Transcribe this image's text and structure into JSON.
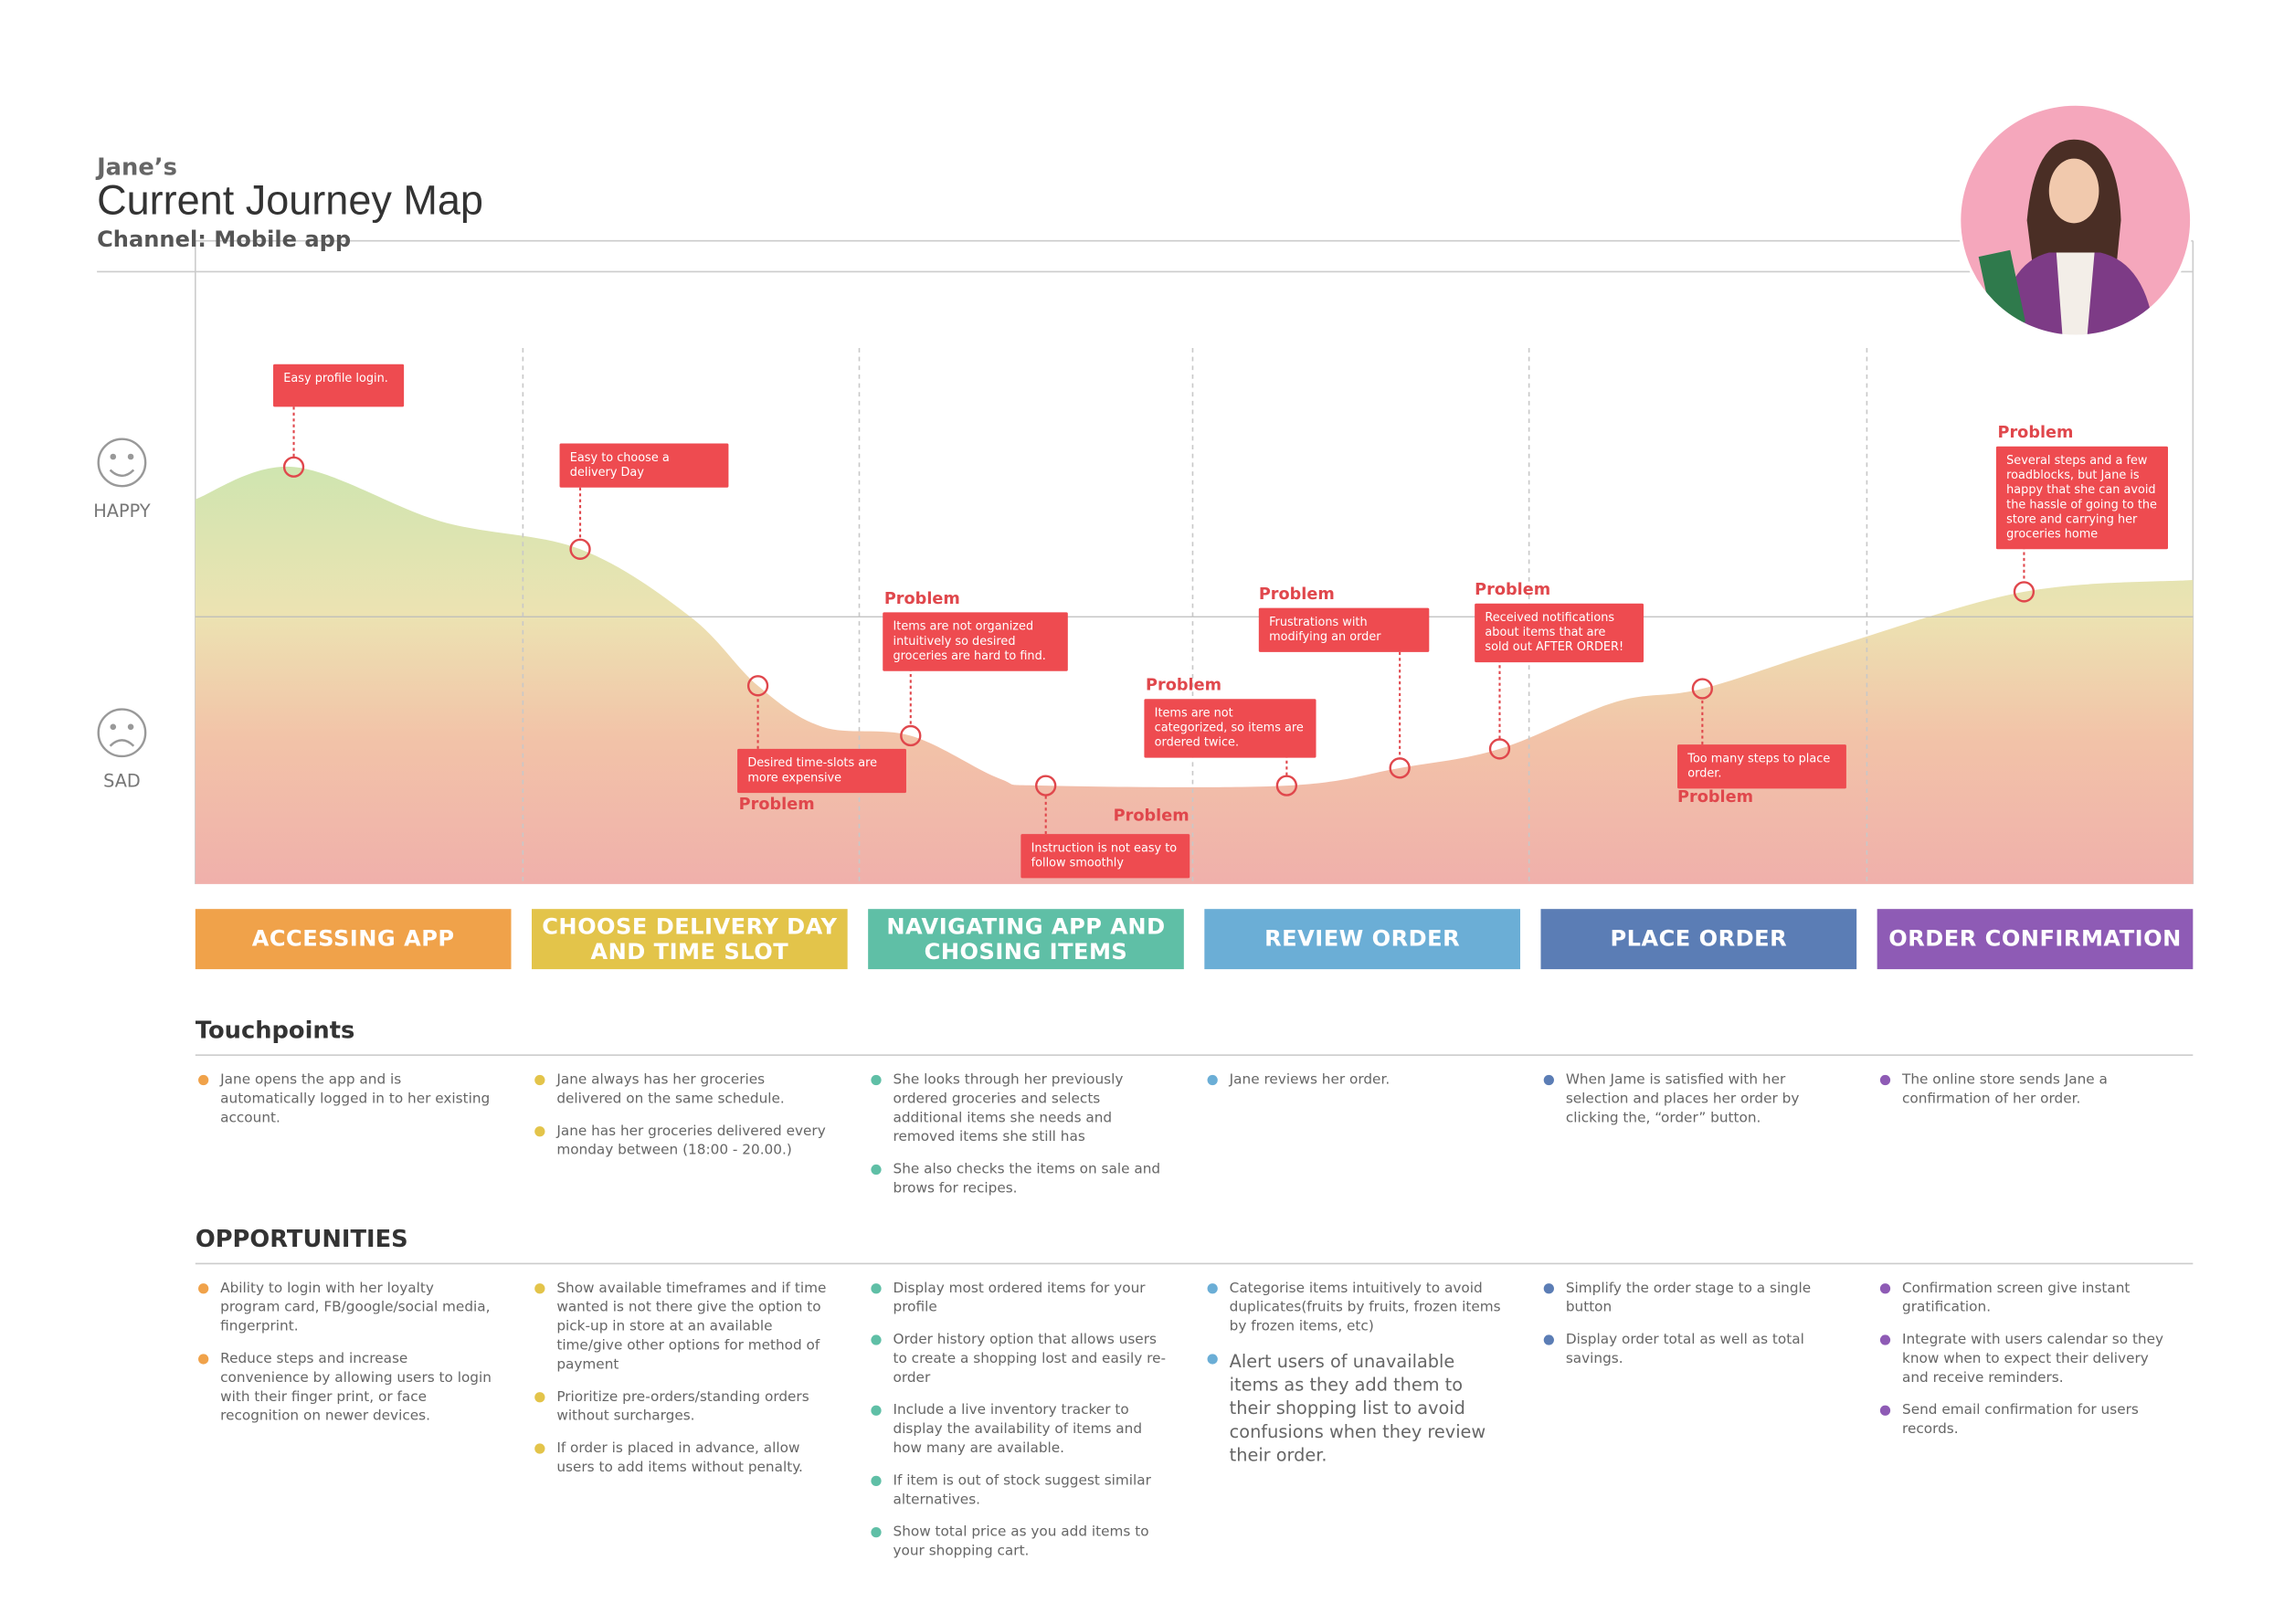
{
  "header": {
    "name": "Jane’s",
    "title": "Current Journey Map",
    "channel": "Channel: Mobile app"
  },
  "mood": {
    "happy": "HAPPY",
    "sad": "SAD"
  },
  "callouts": [
    {
      "text": "Easy profile login."
    },
    {
      "text": "Easy to choose a delivery Day"
    },
    {
      "tag": "Problem",
      "text": "Desired time-slots are more expensive"
    },
    {
      "tag": "Problem",
      "text": "Items are not organized intuitively so desired groceries are hard to find."
    },
    {
      "tag": "Problem",
      "text": "Instruction is not easy to follow smoothly"
    },
    {
      "tag": "Problem",
      "text": "Items are not categorized, so items are ordered twice."
    },
    {
      "tag": "Problem",
      "text": "Frustrations with modifying an order"
    },
    {
      "tag": "Problem",
      "text": "Received notifications about items that are sold out AFTER ORDER!"
    },
    {
      "tag": "Problem",
      "text": "Too many steps to place order."
    },
    {
      "tag": "Problem",
      "text": "Several steps and a few roadblocks, but Jane is happy that she can avoid the hassle of going to the store and carrying her groceries home"
    }
  ],
  "sections": {
    "touchpoints": "Touchpoints",
    "opportunities": "OPPORTUNITIES"
  },
  "stages": [
    {
      "name": "ACCESSING APP",
      "color": "#f0a24a",
      "touchpoints": [
        "Jane opens the app and is automatically logged in to her existing account."
      ],
      "opportunities": [
        "Ability to login with her loyalty program card, FB/google/social media, fingerprint.",
        "Reduce steps and increase convenience by allowing users to login with their finger print, or face recognition on newer devices."
      ]
    },
    {
      "name": "CHOOSE DELIVERY DAY AND TIME SLOT",
      "color": "#e3c44a",
      "touchpoints": [
        "Jane always has her groceries delivered on the same schedule.",
        "Jane has her groceries delivered every monday between (18:00 - 20.00.)"
      ],
      "opportunities": [
        "Show available timeframes and if time wanted is not there give the option to pick-up in store at an available time/give other options for method of payment",
        "Prioritize pre-orders/standing orders without surcharges.",
        "If order is placed in advance, allow users to add items without penalty."
      ]
    },
    {
      "name": "NAVIGATING APP AND CHOSING ITEMS",
      "color": "#5fbfa6",
      "touchpoints": [
        "She looks through her previously ordered groceries and selects additional items she needs and removed items she still has",
        "She also checks the items on sale and brows for recipes."
      ],
      "opportunities": [
        "Display most ordered items for your profile",
        "Order history option that allows users to create a shopping lost and easily re-order",
        "Include a live inventory tracker to display the availability of items and how many are available.",
        "If item is out of stock suggest similar alternatives.",
        "Show total price as you add items to your shopping cart."
      ]
    },
    {
      "name": "REVIEW ORDER",
      "color": "#6baed6",
      "touchpoints": [
        "Jane reviews her order."
      ],
      "opportunities": [
        "Categorise items intuitively to avoid duplicates(fruits by fruits, frozen items by frozen items, etc)",
        "Alert users of unavailable items as they add them to their shopping list to avoid confusions when they review their order."
      ]
    },
    {
      "name": "PLACE ORDER",
      "color": "#5b7db5",
      "touchpoints": [
        "When Jame is satisfied with her selection and places her order by clicking the, “order” button."
      ],
      "opportunities": [
        "Simplify the order stage to a single button",
        "Display order total as well as total savings."
      ]
    },
    {
      "name": "ORDER CONFIRMATION",
      "color": "#8e5bb5",
      "touchpoints": [
        "The online store sends Jane a confirmation of her order."
      ],
      "opportunities": [
        "Confirmation screen give instant gratification.",
        "Integrate with users calendar so they know when to expect their delivery and receive reminders.",
        "Send email  confirmation for users records."
      ]
    }
  ]
}
